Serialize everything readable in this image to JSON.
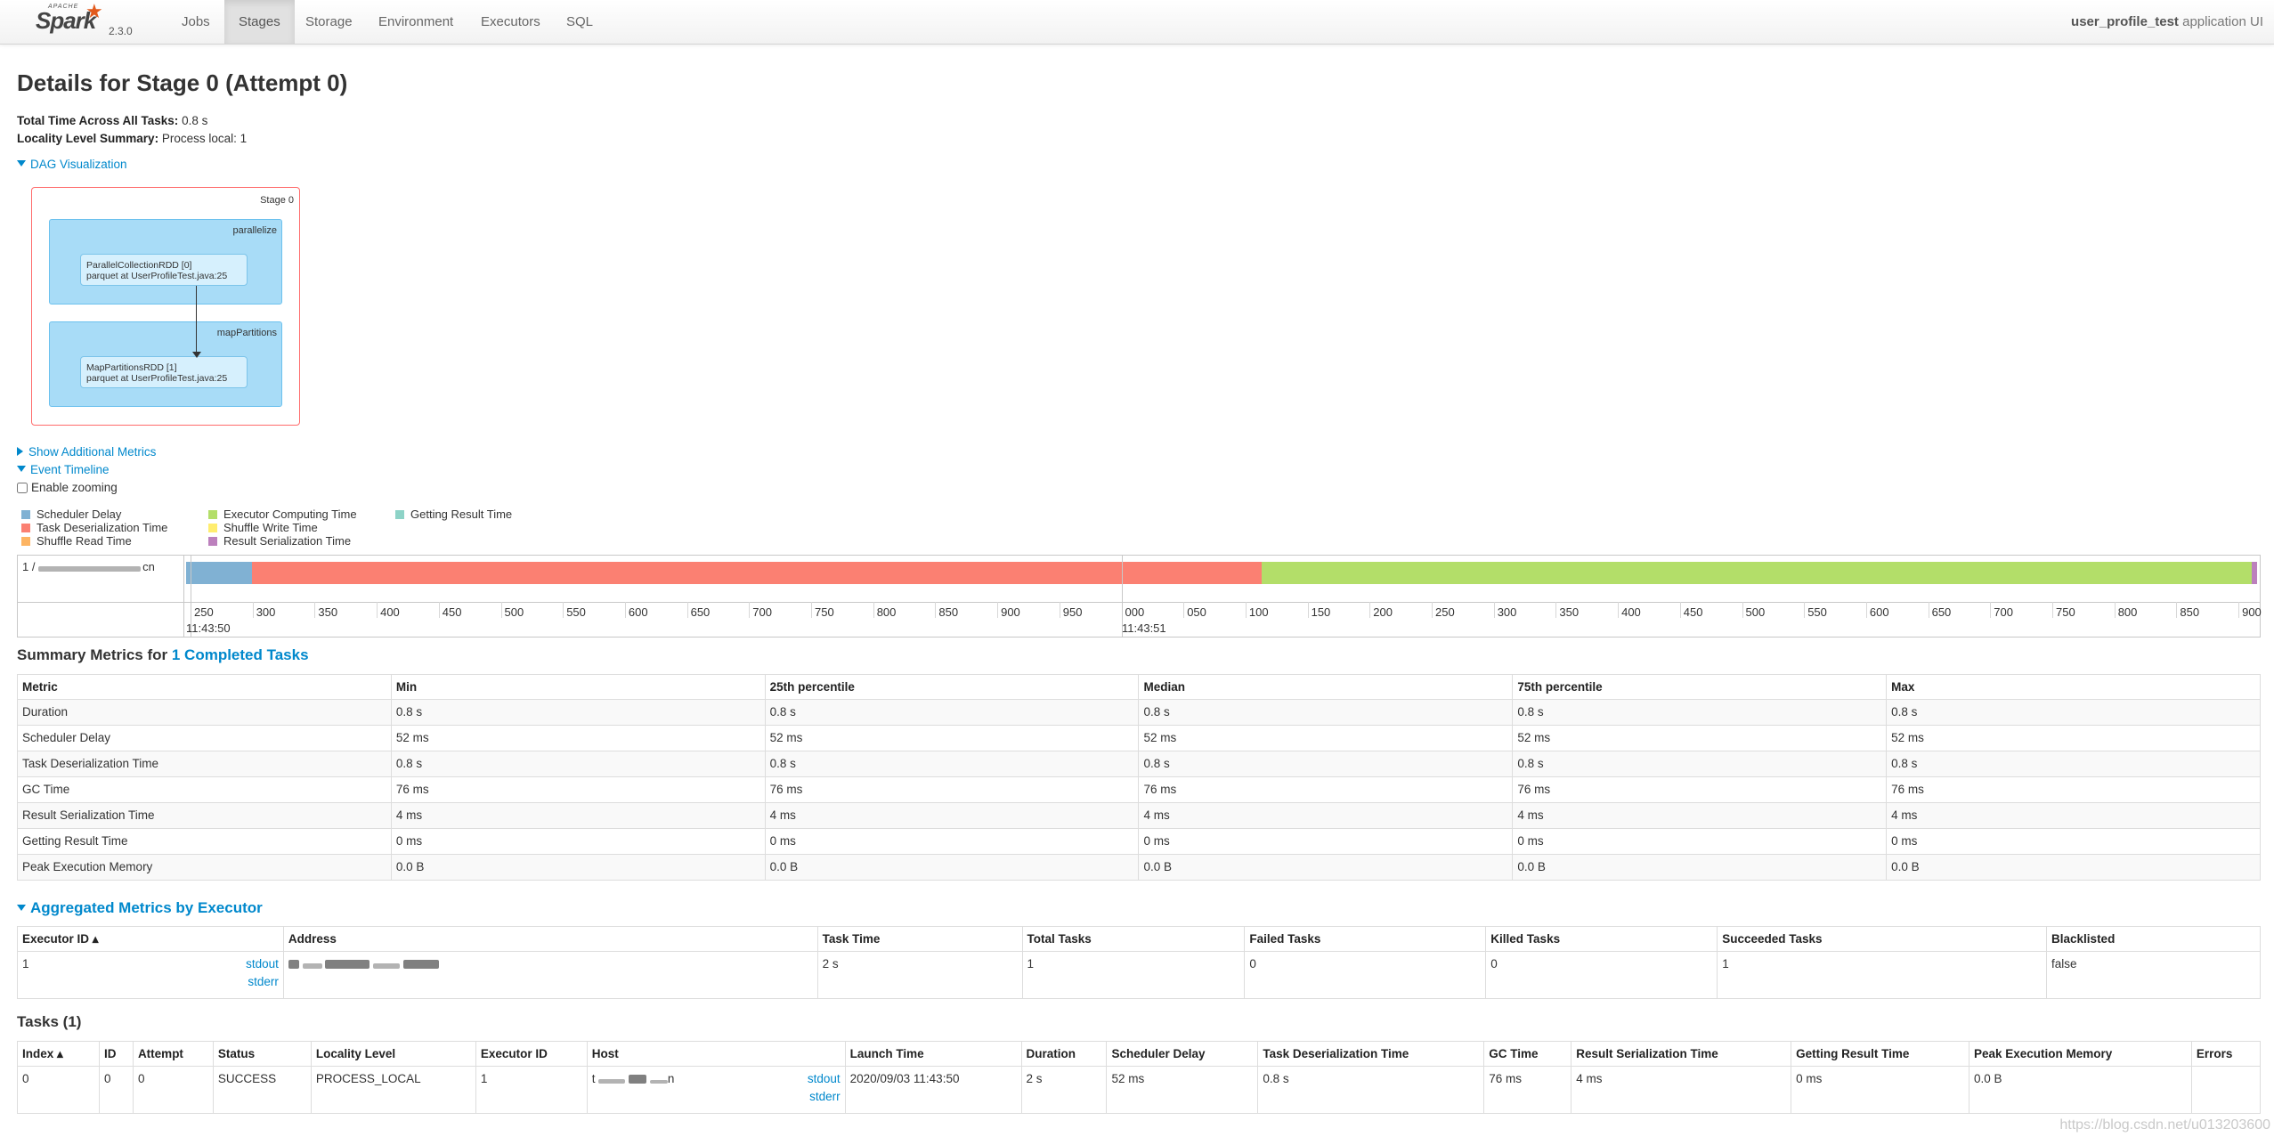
{
  "navbar": {
    "brand_apache": "APACHE",
    "brand_name": "Spark",
    "version": "2.3.0",
    "tabs": [
      "Jobs",
      "Stages",
      "Storage",
      "Environment",
      "Executors",
      "SQL"
    ],
    "active_tab": "Stages",
    "app_name": "user_profile_test",
    "app_suffix": "application UI"
  },
  "page": {
    "title": "Details for Stage 0 (Attempt 0)",
    "total_time_label": "Total Time Across All Tasks:",
    "total_time_value": "0.8 s",
    "locality_label": "Locality Level Summary:",
    "locality_value": "Process local: 1",
    "dag_toggle": "DAG Visualization",
    "additional_metrics_toggle": "Show Additional Metrics",
    "event_timeline_toggle": "Event Timeline",
    "enable_zooming_label": "Enable zooming"
  },
  "dag": {
    "stage_label": "Stage 0",
    "clusters": [
      {
        "label": "parallelize",
        "node_line1": "ParallelCollectionRDD [0]",
        "node_line2": "parquet at UserProfileTest.java:25"
      },
      {
        "label": "mapPartitions",
        "node_line1": "MapPartitionsRDD [1]",
        "node_line2": "parquet at UserProfileTest.java:25"
      }
    ]
  },
  "legend": [
    {
      "label": "Scheduler Delay",
      "color": "#80B1D3"
    },
    {
      "label": "Task Deserialization Time",
      "color": "#FB8072"
    },
    {
      "label": "Shuffle Read Time",
      "color": "#FDB462"
    },
    {
      "label": "Executor Computing Time",
      "color": "#B3DE69"
    },
    {
      "label": "Shuffle Write Time",
      "color": "#FFED6F"
    },
    {
      "label": "Result Serialization Time",
      "color": "#BC80BD"
    },
    {
      "label": "Getting Result Time",
      "color": "#8DD3C7"
    }
  ],
  "timeline": {
    "row_label": "1 / ",
    "segments_ms": [
      {
        "name": "scheduler-delay",
        "value": 52,
        "color": "#80B1D3"
      },
      {
        "name": "task-deserialization",
        "value": 800,
        "color": "#FB8072"
      },
      {
        "name": "executor-computing",
        "value": 784,
        "color": "#B3DE69"
      },
      {
        "name": "result-serialization",
        "value": 4,
        "color": "#BC80BD"
      }
    ],
    "tick_labels": [
      "250",
      "300",
      "350",
      "400",
      "450",
      "500",
      "550",
      "600",
      "650",
      "700",
      "750",
      "800",
      "850",
      "900",
      "950",
      "000",
      "050",
      "100",
      "150",
      "200",
      "250",
      "300",
      "350",
      "400",
      "450",
      "500",
      "550",
      "600",
      "650",
      "700",
      "750",
      "800",
      "850",
      "900"
    ],
    "major_labels": [
      "11:43:50",
      "11:43:51"
    ]
  },
  "summary": {
    "title_prefix": "Summary Metrics for",
    "title_link": "1 Completed Tasks",
    "headers": [
      "Metric",
      "Min",
      "25th percentile",
      "Median",
      "75th percentile",
      "Max"
    ],
    "rows": [
      [
        "Duration",
        "0.8 s",
        "0.8 s",
        "0.8 s",
        "0.8 s",
        "0.8 s"
      ],
      [
        "Scheduler Delay",
        "52 ms",
        "52 ms",
        "52 ms",
        "52 ms",
        "52 ms"
      ],
      [
        "Task Deserialization Time",
        "0.8 s",
        "0.8 s",
        "0.8 s",
        "0.8 s",
        "0.8 s"
      ],
      [
        "GC Time",
        "76 ms",
        "76 ms",
        "76 ms",
        "76 ms",
        "76 ms"
      ],
      [
        "Result Serialization Time",
        "4 ms",
        "4 ms",
        "4 ms",
        "4 ms",
        "4 ms"
      ],
      [
        "Getting Result Time",
        "0 ms",
        "0 ms",
        "0 ms",
        "0 ms",
        "0 ms"
      ],
      [
        "Peak Execution Memory",
        "0.0 B",
        "0.0 B",
        "0.0 B",
        "0.0 B",
        "0.0 B"
      ]
    ]
  },
  "aggregated": {
    "title": "Aggregated Metrics by Executor",
    "headers": [
      "Executor ID ▴",
      "Address",
      "Task Time",
      "Total Tasks",
      "Failed Tasks",
      "Killed Tasks",
      "Succeeded Tasks",
      "Blacklisted"
    ],
    "row": {
      "executor_id": "1",
      "stdout": "stdout",
      "stderr": "stderr",
      "task_time": "2 s",
      "total_tasks": "1",
      "failed_tasks": "0",
      "killed_tasks": "0",
      "succeeded_tasks": "1",
      "blacklisted": "false"
    }
  },
  "tasks": {
    "title": "Tasks (1)",
    "headers": [
      "Index ▴",
      "ID",
      "Attempt",
      "Status",
      "Locality Level",
      "Executor ID",
      "Host",
      "Launch Time",
      "Duration",
      "Scheduler Delay",
      "Task Deserialization Time",
      "GC Time",
      "Result Serialization Time",
      "Getting Result Time",
      "Peak Execution Memory",
      "Errors"
    ],
    "row": {
      "index": "0",
      "id": "0",
      "attempt": "0",
      "status": "SUCCESS",
      "locality": "PROCESS_LOCAL",
      "executor_id": "1",
      "host_prefix": "t",
      "host_suffix": "n",
      "stdout": "stdout",
      "stderr": "stderr",
      "launch_time": "2020/09/03 11:43:50",
      "duration": "2 s",
      "scheduler_delay": "52 ms",
      "task_deser": "0.8 s",
      "gc_time": "76 ms",
      "result_ser": "4 ms",
      "getting_result": "0 ms",
      "peak_mem": "0.0 B",
      "errors": ""
    }
  },
  "watermark": "https://blog.csdn.net/u013203600"
}
